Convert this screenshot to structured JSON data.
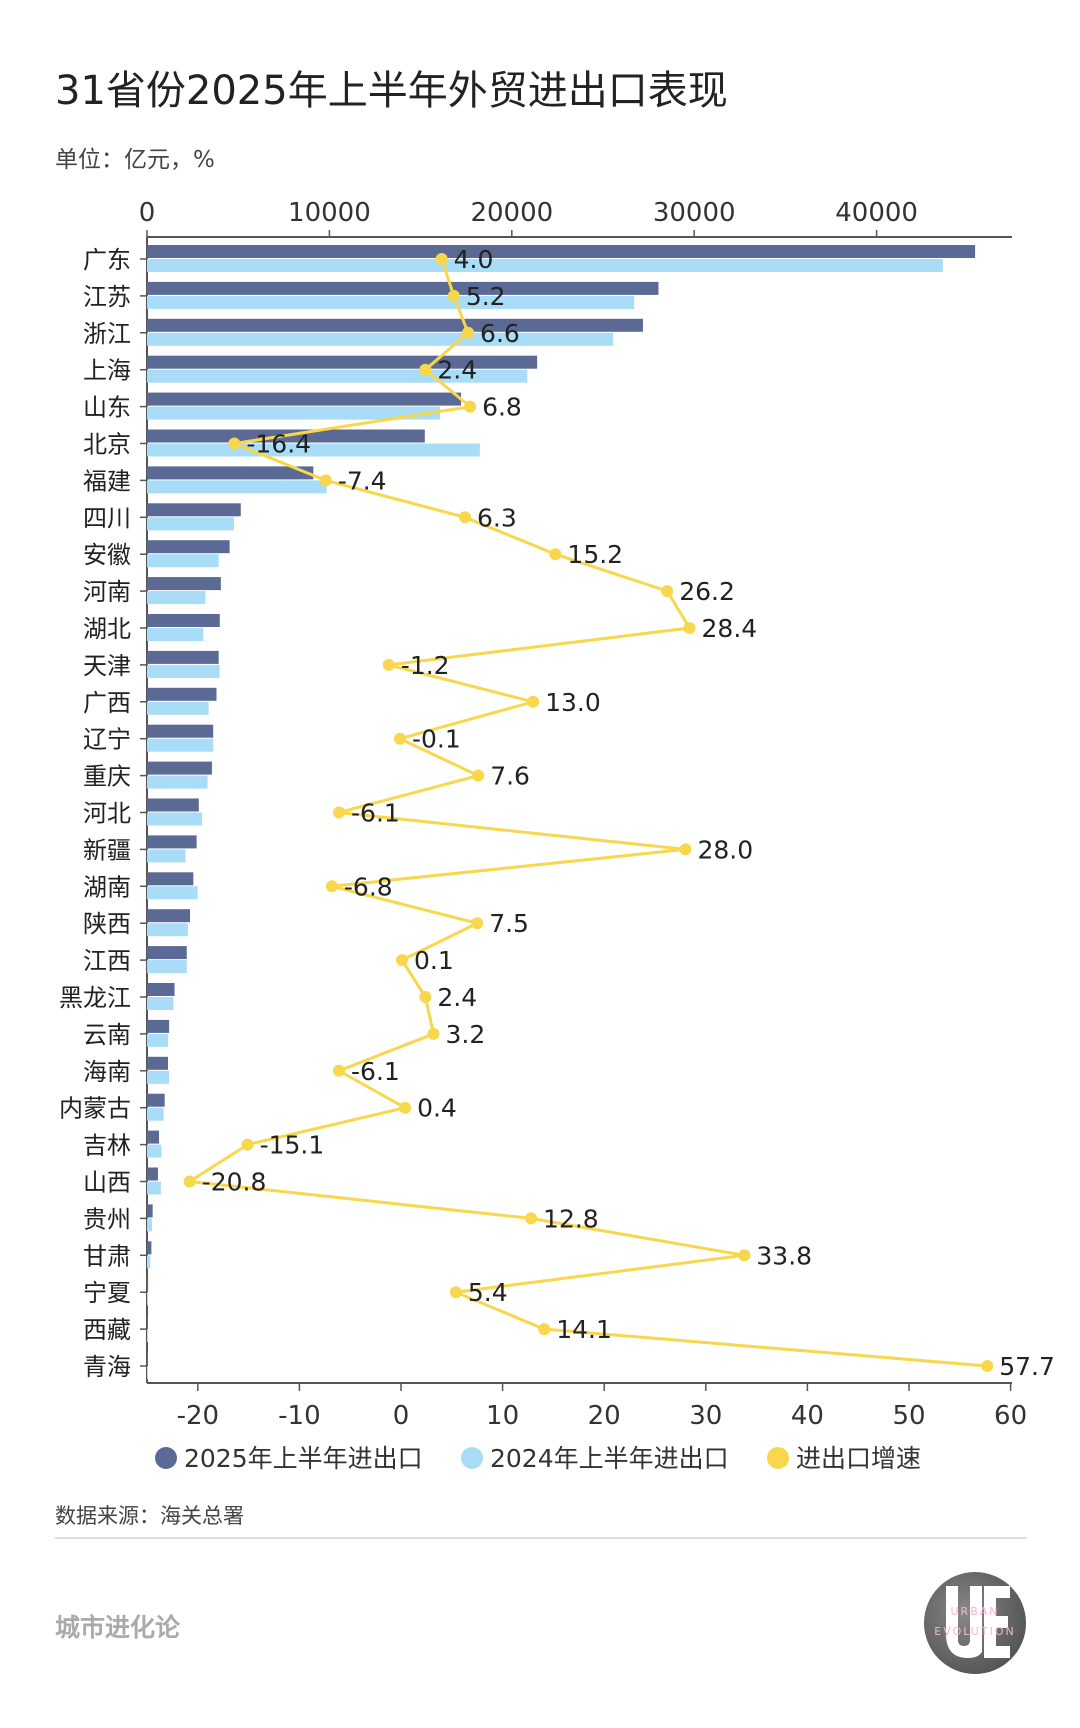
{
  "header": {
    "title": "31省份2025年上半年外贸进出口表现",
    "unit": "单位：亿元，%"
  },
  "footer": {
    "source": "数据来源：海关总署",
    "brand": "城市进化论",
    "logo_text": "UE",
    "logo_sub1": "URBAN",
    "logo_sub2": "EVOLUTION",
    "watermark": "城市进化论 URBAN EVOLUTION"
  },
  "colors": {
    "bar2025": "#5a6a94",
    "bar2024": "#a8dcf7",
    "growth": "#f8d74c"
  },
  "chart_data": {
    "type": "bar",
    "orientation": "horizontal",
    "categories": [
      "广东",
      "江苏",
      "浙江",
      "上海",
      "山东",
      "北京",
      "福建",
      "四川",
      "安徽",
      "河南",
      "湖北",
      "天津",
      "广西",
      "辽宁",
      "重庆",
      "河北",
      "新疆",
      "湖南",
      "陕西",
      "江西",
      "黑龙江",
      "云南",
      "海南",
      "内蒙古",
      "吉林",
      "山西",
      "贵州",
      "甘肃",
      "宁夏",
      "西藏",
      "青海"
    ],
    "series": [
      {
        "name": "2025年上半年进出口",
        "axis": "top",
        "values": [
          45400,
          28040,
          27190,
          21390,
          17220,
          15230,
          9120,
          5140,
          4530,
          4050,
          3990,
          3930,
          3810,
          3630,
          3560,
          2840,
          2720,
          2540,
          2360,
          2180,
          1510,
          1210,
          1150,
          970,
          660,
          600,
          310,
          240,
          60,
          30,
          20
        ]
      },
      {
        "name": "2024年上半年进出口",
        "axis": "top",
        "values": [
          43630,
          26710,
          25560,
          20850,
          16070,
          18250,
          9850,
          4770,
          3930,
          3200,
          3080,
          3980,
          3380,
          3630,
          3320,
          3020,
          2110,
          2780,
          2240,
          2180,
          1450,
          1150,
          1210,
          910,
          790,
          760,
          270,
          180,
          60,
          25,
          15
        ]
      },
      {
        "name": "进出口增速",
        "axis": "bottom",
        "type": "line",
        "values": [
          4.0,
          5.2,
          6.6,
          2.4,
          6.8,
          -16.4,
          -7.4,
          6.3,
          15.2,
          26.2,
          28.4,
          -1.2,
          13.0,
          -0.1,
          7.6,
          -6.1,
          28.0,
          -6.8,
          7.5,
          0.1,
          2.4,
          3.2,
          -6.1,
          0.4,
          -15.1,
          -20.8,
          12.8,
          33.8,
          5.4,
          14.1,
          57.7
        ],
        "labels": [
          "4.0",
          "5.2",
          "6.6",
          "2.4",
          "6.8",
          "-16.4",
          "-7.4",
          "6.3",
          "15.2",
          "26.2",
          "28.4",
          "-1.2",
          "13.0",
          "-0.1",
          "7.6",
          "-6.1",
          "28.0",
          "-6.8",
          "7.5",
          "0.1",
          "2.4",
          "3.2",
          "-6.1",
          "0.4",
          "-15.1",
          "-20.8",
          "12.8",
          "33.8",
          "5.4",
          "14.1",
          "57.7"
        ]
      }
    ],
    "top_axis": {
      "range": [
        0,
        47500
      ],
      "ticks": [
        "0",
        "10000",
        "20000",
        "30000",
        "40000"
      ]
    },
    "bottom_axis": {
      "range": [
        -25,
        60
      ],
      "ticks": [
        "-20",
        "-10",
        "0",
        "10",
        "20",
        "30",
        "40",
        "50",
        "60"
      ]
    },
    "legend": {
      "placement": "bottom",
      "entries": [
        "2025年上半年进出口",
        "2024年上半年进出口",
        "进出口增速"
      ]
    },
    "grid": false
  }
}
